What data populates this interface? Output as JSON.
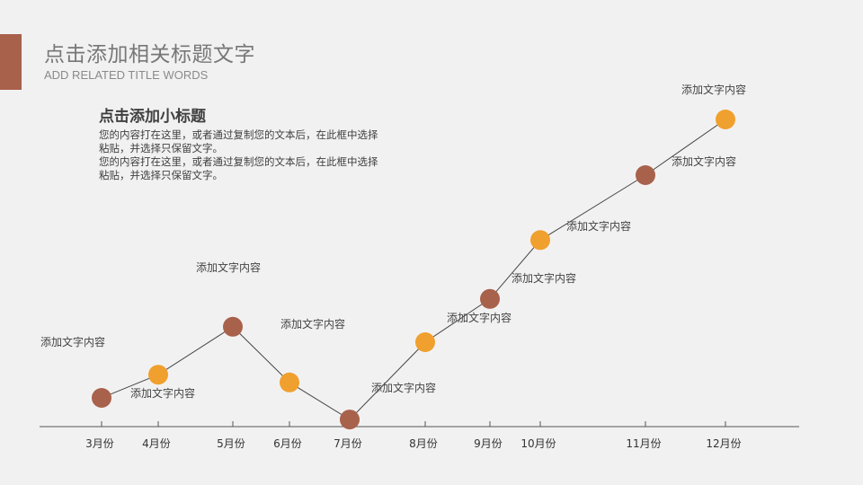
{
  "header": {
    "title": "点击添加相关标题文字",
    "subtitle": "ADD RELATED TITLE WORDS"
  },
  "intro": {
    "subheading": "点击添加小标题",
    "paragraphs": [
      "您的内容打在这里，或者通过复制您的文本后，在此框中选择粘贴，并选择只保留文字。",
      "您的内容打在这里，或者通过复制您的文本后，在此框中选择粘贴，并选择只保留文字。"
    ]
  },
  "colors": {
    "accent": "#a8614b",
    "brown": "#a8614b",
    "orange": "#f0a02e",
    "line": "#444444",
    "axis": "#555555"
  },
  "chart_data": {
    "type": "line",
    "categories": [
      "3月份",
      "4月份",
      "5月份",
      "6月份",
      "7月份",
      "8月份",
      "9月份",
      "10月份",
      "11月份",
      "12月份"
    ],
    "values": [
      1.0,
      1.75,
      3.3,
      1.5,
      0.3,
      2.8,
      4.2,
      6.1,
      8.2,
      10.0
    ],
    "point_colors": [
      "brown",
      "orange",
      "brown",
      "orange",
      "brown",
      "orange",
      "brown",
      "orange",
      "brown",
      "orange"
    ],
    "point_labels": [
      "添加文字内容",
      "添加文字内容",
      "添加文字内容",
      "添加文字内容",
      "添加文字内容",
      "添加文字内容",
      "添加文字内容",
      "添加文字内容",
      "添加文字内容",
      "添加文字内容"
    ],
    "extra_label": "添加文字内容",
    "xlabel": "",
    "ylabel": "",
    "grid": false,
    "legend": "none"
  }
}
